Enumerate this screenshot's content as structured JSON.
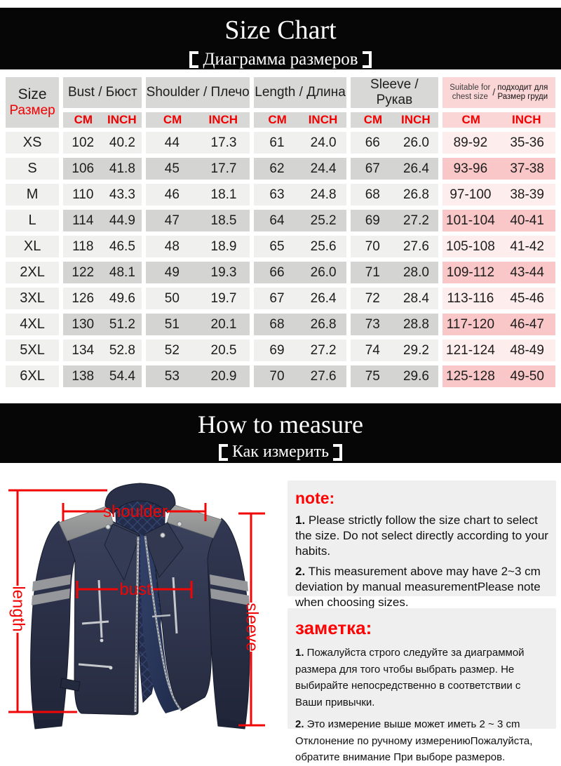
{
  "banner1": {
    "title": "Size Chart",
    "subtitle": "Диаграмма размеров"
  },
  "banner2": {
    "title": "How to measure",
    "subtitle": "Как измерить"
  },
  "table": {
    "size_header": {
      "en": "Size",
      "ru": "Размер"
    },
    "unit_cm": "CM",
    "unit_inch": "INCH",
    "groups": [
      {
        "label": "Bust / Бюст"
      },
      {
        "label": "Shoulder / Плечо"
      },
      {
        "label": "Length / Длина"
      },
      {
        "label": "Sleeve / Рукав"
      }
    ],
    "suitable_header": {
      "en_line1": "Suitable for",
      "en_line2": "chest size",
      "slash": "/",
      "ru_line1": "подходит для",
      "ru_line2": "Размер груди"
    },
    "rows": [
      {
        "size": "XS",
        "values": [
          [
            "102",
            "40.2"
          ],
          [
            "44",
            "17.3"
          ],
          [
            "61",
            "24.0"
          ],
          [
            "66",
            "26.0"
          ],
          [
            "89-92",
            "35-36"
          ]
        ]
      },
      {
        "size": "S",
        "values": [
          [
            "106",
            "41.8"
          ],
          [
            "45",
            "17.7"
          ],
          [
            "62",
            "24.4"
          ],
          [
            "67",
            "26.4"
          ],
          [
            "93-96",
            "37-38"
          ]
        ]
      },
      {
        "size": "M",
        "values": [
          [
            "110",
            "43.3"
          ],
          [
            "46",
            "18.1"
          ],
          [
            "63",
            "24.8"
          ],
          [
            "68",
            "26.8"
          ],
          [
            "97-100",
            "38-39"
          ]
        ]
      },
      {
        "size": "L",
        "values": [
          [
            "114",
            "44.9"
          ],
          [
            "47",
            "18.5"
          ],
          [
            "64",
            "25.2"
          ],
          [
            "69",
            "27.2"
          ],
          [
            "101-104",
            "40-41"
          ]
        ]
      },
      {
        "size": "XL",
        "values": [
          [
            "118",
            "46.5"
          ],
          [
            "48",
            "18.9"
          ],
          [
            "65",
            "25.6"
          ],
          [
            "70",
            "27.6"
          ],
          [
            "105-108",
            "41-42"
          ]
        ]
      },
      {
        "size": "2XL",
        "values": [
          [
            "122",
            "48.1"
          ],
          [
            "49",
            "19.3"
          ],
          [
            "66",
            "26.0"
          ],
          [
            "71",
            "28.0"
          ],
          [
            "109-112",
            "43-44"
          ]
        ]
      },
      {
        "size": "3XL",
        "values": [
          [
            "126",
            "49.6"
          ],
          [
            "50",
            "19.7"
          ],
          [
            "67",
            "26.4"
          ],
          [
            "72",
            "28.4"
          ],
          [
            "113-116",
            "45-46"
          ]
        ]
      },
      {
        "size": "4XL",
        "values": [
          [
            "130",
            "51.2"
          ],
          [
            "51",
            "20.1"
          ],
          [
            "68",
            "26.8"
          ],
          [
            "73",
            "28.8"
          ],
          [
            "117-120",
            "46-47"
          ]
        ]
      },
      {
        "size": "5XL",
        "values": [
          [
            "134",
            "52.8"
          ],
          [
            "52",
            "20.5"
          ],
          [
            "69",
            "27.2"
          ],
          [
            "74",
            "29.2"
          ],
          [
            "121-124",
            "48-49"
          ]
        ]
      },
      {
        "size": "6XL",
        "values": [
          [
            "138",
            "54.4"
          ],
          [
            "53",
            "20.9"
          ],
          [
            "70",
            "27.6"
          ],
          [
            "75",
            "29.6"
          ],
          [
            "125-128",
            "49-50"
          ]
        ]
      }
    ]
  },
  "measure_labels": {
    "shoulder": "shoulder",
    "bust": "bust",
    "length": "length",
    "sleeve": "sleeve"
  },
  "note_en": {
    "heading": "note:",
    "item1_num": "1.",
    "item1": " Please strictly follow the size chart to select the size. Do not select directly according to your habits.",
    "item2_num": "2.",
    "item2": " This measurement above may have 2~3 cm deviation by manual measurementPlease note when choosing sizes."
  },
  "note_ru": {
    "heading": "заметка:",
    "item1_num": "1.",
    "item1": " Пожалуйста строго следуйте за диаграммой размера для того чтобы выбрать размер. Не выбирайте непосредственно в соответствии с Ваши привычки.",
    "item2_num": "2.",
    "item2": " Это измерение выше может иметь 2 ~ 3 cm Отклонение по ручному измерениюПожалуйста, обратите внимание При выборе размеров."
  },
  "colors": {
    "banner_bg": "#060606",
    "accent_red": "#f10000",
    "note_red": "#fe0303",
    "header_gray": "#d8d8d7",
    "row_light": "#f0f0ef",
    "row_dark": "#d4d4d3",
    "pink_header": "#fbd6d6",
    "pink_light": "#fdeded",
    "pink_dark": "#f9c7c7",
    "jacket_navy": "#2a3047",
    "jacket_gray": "#9a9a98",
    "note_box_bg": "#efefef"
  }
}
